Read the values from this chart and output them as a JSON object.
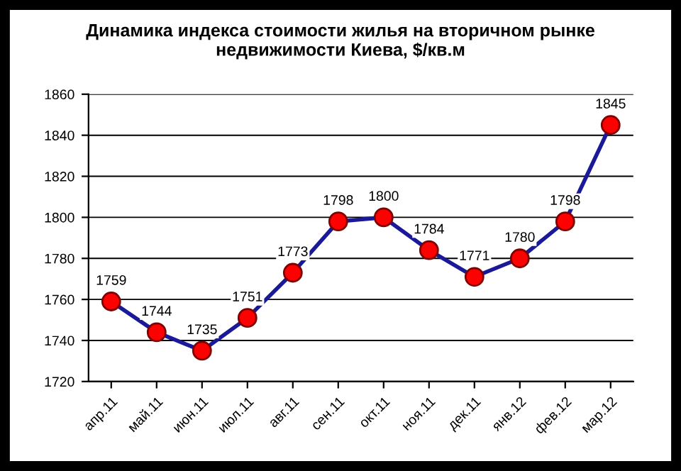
{
  "chart_data": {
    "type": "line",
    "title": "Динамика индекса стоимости жилья на вторичном рынке\nнедвижимости Киева, $/кв.м",
    "categories": [
      "апр.11",
      "май.11",
      "июн.11",
      "июл.11",
      "авг.11",
      "сен.11",
      "окт.11",
      "ноя.11",
      "дек.11",
      "янв.12",
      "фев.12",
      "мар.12"
    ],
    "series": [
      {
        "color": "#1a1a99",
        "values": [
          1759,
          1744,
          1735,
          1751,
          1773,
          1798,
          1800,
          1784,
          1771,
          1780,
          1798,
          1845
        ]
      }
    ],
    "ylim": [
      1720,
      1860
    ],
    "yticks": [
      1720,
      1740,
      1760,
      1780,
      1800,
      1820,
      1840,
      1860
    ],
    "grid": "y",
    "marker": "circle",
    "line_style": "solid",
    "data_labels": true
  }
}
